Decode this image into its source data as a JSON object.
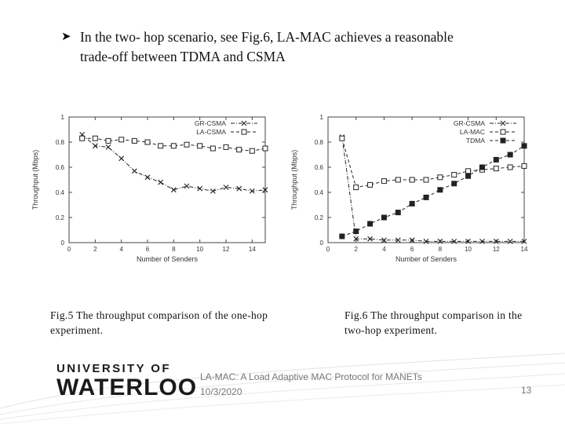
{
  "bullet": {
    "line1": "In the two- hop scenario, see Fig.6, LA-MAC achieves a reasonable",
    "line2": "trade-off between TDMA and CSMA"
  },
  "captions": {
    "fig5": "Fig.5 The throughput comparison of the one-hop experiment.",
    "fig6": "Fig.6 The throughput comparison in the two-hop experiment."
  },
  "footer": {
    "logo_line1": "UNIVERSITY OF",
    "logo_line2": "WATERLOO",
    "title": "LA-MAC: A Load Adaptive MAC Protocol for MANETs",
    "date": "10/3/2020",
    "page_number": "13"
  },
  "colors": {
    "line": "#222222",
    "axis": "#444444",
    "wave": "#d9d9d9"
  },
  "chart_data": [
    {
      "type": "line",
      "title": "",
      "xlabel": "Number of Senders",
      "ylabel": "Throughput (Mbps)",
      "xlim": [
        0,
        15
      ],
      "ylim": [
        0,
        1
      ],
      "xticks": [
        0,
        2,
        4,
        6,
        8,
        10,
        12,
        14
      ],
      "yticks": [
        0,
        0.2,
        0.4,
        0.6,
        0.8,
        1
      ],
      "xtick_labels": [
        "0",
        "2",
        "4",
        "6",
        "8",
        "10",
        "12",
        "14"
      ],
      "ytick_labels": [
        "0",
        "0.2",
        "0.4",
        "0.6",
        "0.8",
        "1"
      ],
      "legend_position": "top-right",
      "series": [
        {
          "name": "GR-CSMA",
          "marker": "x",
          "dash": "dotdash",
          "x": [
            1,
            2,
            3,
            4,
            5,
            6,
            7,
            8,
            9,
            10,
            11,
            12,
            13,
            14,
            15
          ],
          "values": [
            0.86,
            0.77,
            0.76,
            0.67,
            0.57,
            0.52,
            0.48,
            0.42,
            0.45,
            0.43,
            0.41,
            0.44,
            0.43,
            0.41,
            0.42
          ]
        },
        {
          "name": "LA-CSMA",
          "marker": "square-open",
          "dash": "dash",
          "x": [
            1,
            2,
            3,
            4,
            5,
            6,
            7,
            8,
            9,
            10,
            11,
            12,
            13,
            14,
            15
          ],
          "values": [
            0.83,
            0.83,
            0.81,
            0.82,
            0.81,
            0.8,
            0.77,
            0.77,
            0.78,
            0.77,
            0.75,
            0.76,
            0.74,
            0.73,
            0.75
          ]
        }
      ]
    },
    {
      "type": "line",
      "title": "",
      "xlabel": "Number of Senders",
      "ylabel": "Throughput (Mbps)",
      "xlim": [
        0,
        14
      ],
      "ylim": [
        0,
        1
      ],
      "xticks": [
        0,
        2,
        4,
        6,
        8,
        10,
        12,
        14
      ],
      "yticks": [
        0,
        0.2,
        0.4,
        0.6,
        0.8,
        1
      ],
      "xtick_labels": [
        "0",
        "2",
        "4",
        "6",
        "8",
        "10",
        "12",
        "14"
      ],
      "ytick_labels": [
        "0",
        "0.2",
        "0.4",
        "0.6",
        "0.8",
        "1"
      ],
      "legend_position": "top-right",
      "series": [
        {
          "name": "GR-CSMA",
          "marker": "x",
          "dash": "dotdash",
          "x": [
            1,
            2,
            3,
            4,
            5,
            6,
            7,
            8,
            9,
            10,
            11,
            12,
            13,
            14
          ],
          "values": [
            0.84,
            0.03,
            0.03,
            0.02,
            0.02,
            0.02,
            0.01,
            0.01,
            0.01,
            0.01,
            0.01,
            0.01,
            0.01,
            0.01
          ]
        },
        {
          "name": "LA-MAC",
          "marker": "square-open",
          "dash": "dash",
          "x": [
            1,
            2,
            3,
            4,
            5,
            6,
            7,
            8,
            9,
            10,
            11,
            12,
            13,
            14
          ],
          "values": [
            0.83,
            0.44,
            0.46,
            0.49,
            0.5,
            0.5,
            0.5,
            0.52,
            0.54,
            0.57,
            0.58,
            0.59,
            0.6,
            0.61
          ]
        },
        {
          "name": "TDMA",
          "marker": "square-filled",
          "dash": "dash",
          "x": [
            1,
            2,
            3,
            4,
            5,
            6,
            7,
            8,
            9,
            10,
            11,
            12,
            13,
            14
          ],
          "values": [
            0.05,
            0.09,
            0.15,
            0.2,
            0.24,
            0.31,
            0.36,
            0.42,
            0.47,
            0.53,
            0.6,
            0.66,
            0.7,
            0.77
          ]
        }
      ]
    }
  ]
}
